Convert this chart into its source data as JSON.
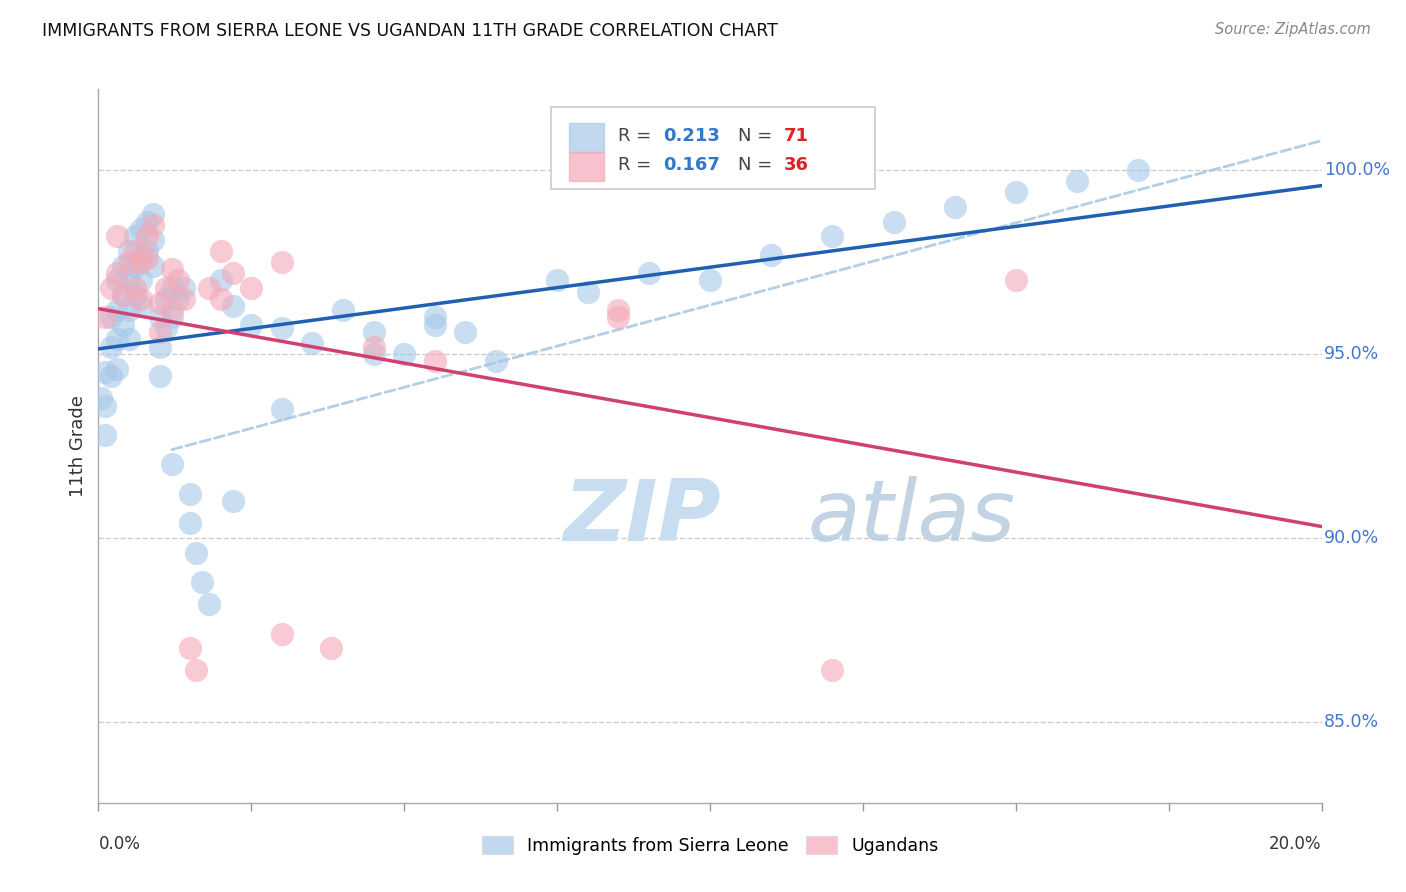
{
  "title": "IMMIGRANTS FROM SIERRA LEONE VS UGANDAN 11TH GRADE CORRELATION CHART",
  "source": "Source: ZipAtlas.com",
  "ylabel": "11th Grade",
  "ylabel_right_ticks": [
    "100.0%",
    "95.0%",
    "90.0%",
    "85.0%"
  ],
  "ylabel_right_vals": [
    1.0,
    0.95,
    0.9,
    0.85
  ],
  "xmin": 0.0,
  "xmax": 0.2,
  "ymin": 0.828,
  "ymax": 1.022,
  "legend_blue_r": "0.213",
  "legend_blue_n": "71",
  "legend_pink_r": "0.167",
  "legend_pink_n": "36",
  "blue_color": "#a8c8e8",
  "pink_color": "#f4a8b8",
  "trend_blue": "#2060b0",
  "trend_pink": "#d04070",
  "dashed_blue": "#a0c4e0",
  "blue_scatter_x": [
    0.0005,
    0.001,
    0.001,
    0.001,
    0.002,
    0.002,
    0.002,
    0.003,
    0.003,
    0.003,
    0.003,
    0.004,
    0.004,
    0.004,
    0.005,
    0.005,
    0.005,
    0.005,
    0.006,
    0.006,
    0.006,
    0.007,
    0.007,
    0.007,
    0.007,
    0.008,
    0.008,
    0.009,
    0.009,
    0.009,
    0.01,
    0.01,
    0.01,
    0.011,
    0.011,
    0.012,
    0.012,
    0.013,
    0.014,
    0.015,
    0.015,
    0.016,
    0.017,
    0.018,
    0.02,
    0.022,
    0.025,
    0.03,
    0.035,
    0.04,
    0.045,
    0.05,
    0.055,
    0.06,
    0.065,
    0.075,
    0.08,
    0.09,
    0.1,
    0.11,
    0.12,
    0.13,
    0.14,
    0.15,
    0.16,
    0.17,
    0.012,
    0.022,
    0.03,
    0.045,
    0.055
  ],
  "blue_scatter_y": [
    0.938,
    0.945,
    0.936,
    0.928,
    0.96,
    0.952,
    0.944,
    0.97,
    0.962,
    0.954,
    0.946,
    0.974,
    0.966,
    0.958,
    0.978,
    0.97,
    0.962,
    0.954,
    0.982,
    0.974,
    0.966,
    0.984,
    0.977,
    0.97,
    0.963,
    0.986,
    0.978,
    0.988,
    0.981,
    0.974,
    0.96,
    0.952,
    0.944,
    0.965,
    0.957,
    0.968,
    0.96,
    0.965,
    0.968,
    0.912,
    0.904,
    0.896,
    0.888,
    0.882,
    0.97,
    0.963,
    0.958,
    0.957,
    0.953,
    0.962,
    0.956,
    0.95,
    0.96,
    0.956,
    0.948,
    0.97,
    0.967,
    0.972,
    0.97,
    0.977,
    0.982,
    0.986,
    0.99,
    0.994,
    0.997,
    1.0,
    0.92,
    0.91,
    0.935,
    0.95,
    0.958
  ],
  "pink_scatter_x": [
    0.001,
    0.002,
    0.003,
    0.004,
    0.005,
    0.006,
    0.006,
    0.007,
    0.007,
    0.008,
    0.009,
    0.01,
    0.01,
    0.011,
    0.012,
    0.013,
    0.014,
    0.015,
    0.016,
    0.018,
    0.02,
    0.022,
    0.025,
    0.03,
    0.038,
    0.045,
    0.055,
    0.085,
    0.12,
    0.15,
    0.003,
    0.008,
    0.012,
    0.02,
    0.03,
    0.085
  ],
  "pink_scatter_y": [
    0.96,
    0.968,
    0.972,
    0.966,
    0.975,
    0.978,
    0.968,
    0.975,
    0.965,
    0.982,
    0.985,
    0.964,
    0.956,
    0.968,
    0.973,
    0.97,
    0.965,
    0.87,
    0.864,
    0.968,
    0.965,
    0.972,
    0.968,
    0.975,
    0.87,
    0.952,
    0.948,
    0.962,
    0.864,
    0.97,
    0.982,
    0.976,
    0.962,
    0.978,
    0.874,
    0.96
  ],
  "watermark_zip": "ZIP",
  "watermark_atlas": "atlas",
  "grid_color": "#cccccc",
  "bg_color": "#ffffff",
  "x_tick_positions": [
    0.0,
    0.025,
    0.05,
    0.075,
    0.1,
    0.125,
    0.15,
    0.175,
    0.2
  ]
}
